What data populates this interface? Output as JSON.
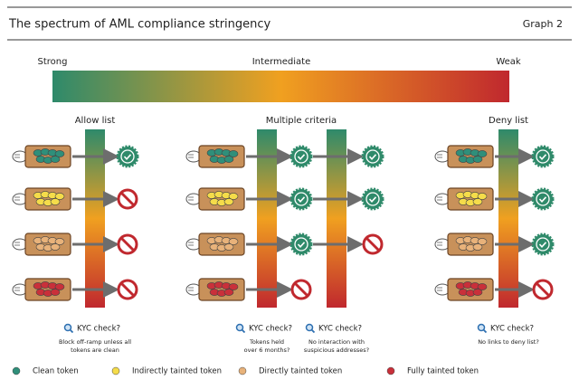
{
  "header": {
    "title": "The spectrum of AML compliance stringency",
    "label": "Graph 2"
  },
  "spectrum": {
    "labels": [
      "Strong",
      "Intermediate",
      "Weak"
    ]
  },
  "panels": [
    {
      "title": "Allow list"
    },
    {
      "title": "Multiple criteria"
    },
    {
      "title": "Deny list"
    }
  ],
  "checks": [
    {
      "title": "KYC check?",
      "note": [
        "Block off-ramp unless all",
        "tokens are clean"
      ]
    },
    {
      "title": "KYC check?",
      "note": [
        "Tokens held",
        "over 6 months?"
      ]
    },
    {
      "title": "KYC check?",
      "note": [
        "No interaction with",
        "suspicious addresses?"
      ]
    },
    {
      "title": "KYC check?",
      "note": [
        "No links to deny list?"
      ]
    }
  ],
  "legend": {
    "items": [
      {
        "label": "Clean token",
        "color": "#2f8f7a"
      },
      {
        "label": "Indirectly tainted token",
        "color": "#f5dc4a"
      },
      {
        "label": "Directly tainted token",
        "color": "#e8b27a"
      },
      {
        "label": "Fully tainted token",
        "color": "#c9303a"
      }
    ]
  }
}
